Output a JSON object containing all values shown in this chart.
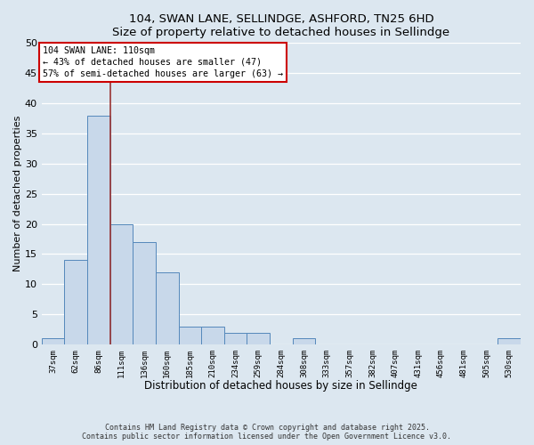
{
  "title": "104, SWAN LANE, SELLINDGE, ASHFORD, TN25 6HD",
  "subtitle": "Size of property relative to detached houses in Sellindge",
  "xlabel": "Distribution of detached houses by size in Sellindge",
  "ylabel": "Number of detached properties",
  "categories": [
    "37sqm",
    "62sqm",
    "86sqm",
    "111sqm",
    "136sqm",
    "160sqm",
    "185sqm",
    "210sqm",
    "234sqm",
    "259sqm",
    "284sqm",
    "308sqm",
    "333sqm",
    "357sqm",
    "382sqm",
    "407sqm",
    "431sqm",
    "456sqm",
    "481sqm",
    "505sqm",
    "530sqm"
  ],
  "values": [
    1,
    14,
    38,
    20,
    17,
    12,
    3,
    3,
    2,
    2,
    0,
    1,
    0,
    0,
    0,
    0,
    0,
    0,
    0,
    0,
    1
  ],
  "bar_color": "#c8d8ea",
  "bar_edge_color": "#5588bb",
  "bg_color": "#dce7f0",
  "grid_color": "#ffffff",
  "vline_color": "#993333",
  "vline_x": 2.5,
  "annotation_text": "104 SWAN LANE: 110sqm\n← 43% of detached houses are smaller (47)\n57% of semi-detached houses are larger (63) →",
  "annotation_box_facecolor": "#ffffff",
  "annotation_box_edgecolor": "#cc0000",
  "footnote_line1": "Contains HM Land Registry data © Crown copyright and database right 2025.",
  "footnote_line2": "Contains public sector information licensed under the Open Government Licence v3.0.",
  "ylim": [
    0,
    50
  ],
  "yticks": [
    0,
    5,
    10,
    15,
    20,
    25,
    30,
    35,
    40,
    45,
    50
  ]
}
